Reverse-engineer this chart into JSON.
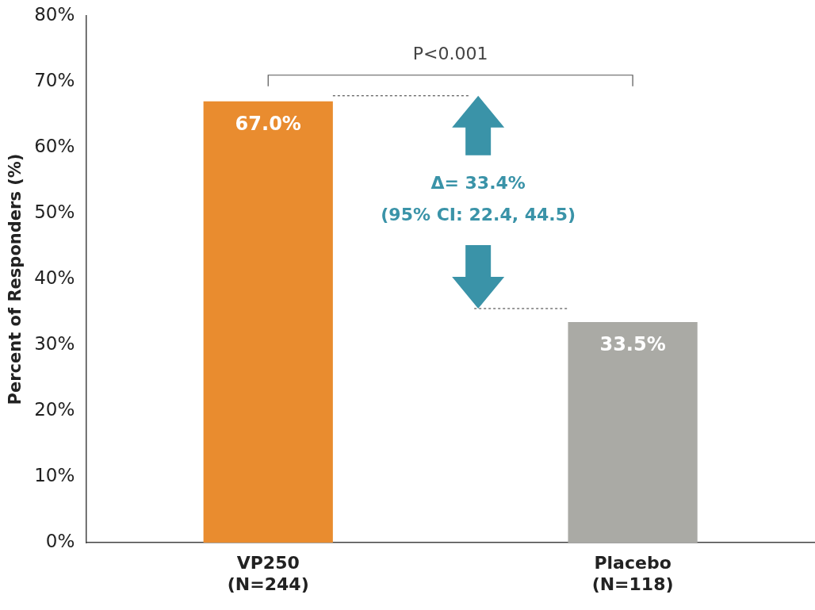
{
  "chart_data": {
    "type": "bar",
    "ylabel": "Percent of Responders (%)",
    "categories": [
      "VP250\n(N=244)",
      "Placebo\n(N=118)"
    ],
    "values": [
      67.0,
      33.5
    ],
    "colors": [
      "#e98c2f",
      "#aaaaa5"
    ],
    "value_labels": [
      "67.0%",
      "33.5%"
    ],
    "ylim": [
      0,
      80
    ],
    "yticks": [
      {
        "value": 0,
        "label": "0%"
      },
      {
        "value": 10,
        "label": "10%"
      },
      {
        "value": 20,
        "label": "20%"
      },
      {
        "value": 30,
        "label": "30%"
      },
      {
        "value": 40,
        "label": "40%"
      },
      {
        "value": 50,
        "label": "50%"
      },
      {
        "value": 60,
        "label": "60%"
      },
      {
        "value": 70,
        "label": "70%"
      },
      {
        "value": 80,
        "label": "80%"
      }
    ],
    "annotations": [
      "P<0.001",
      "Δ= 33.4%",
      "(95% CI: 22.4, 44.5)"
    ],
    "grid": false,
    "legend": false
  }
}
